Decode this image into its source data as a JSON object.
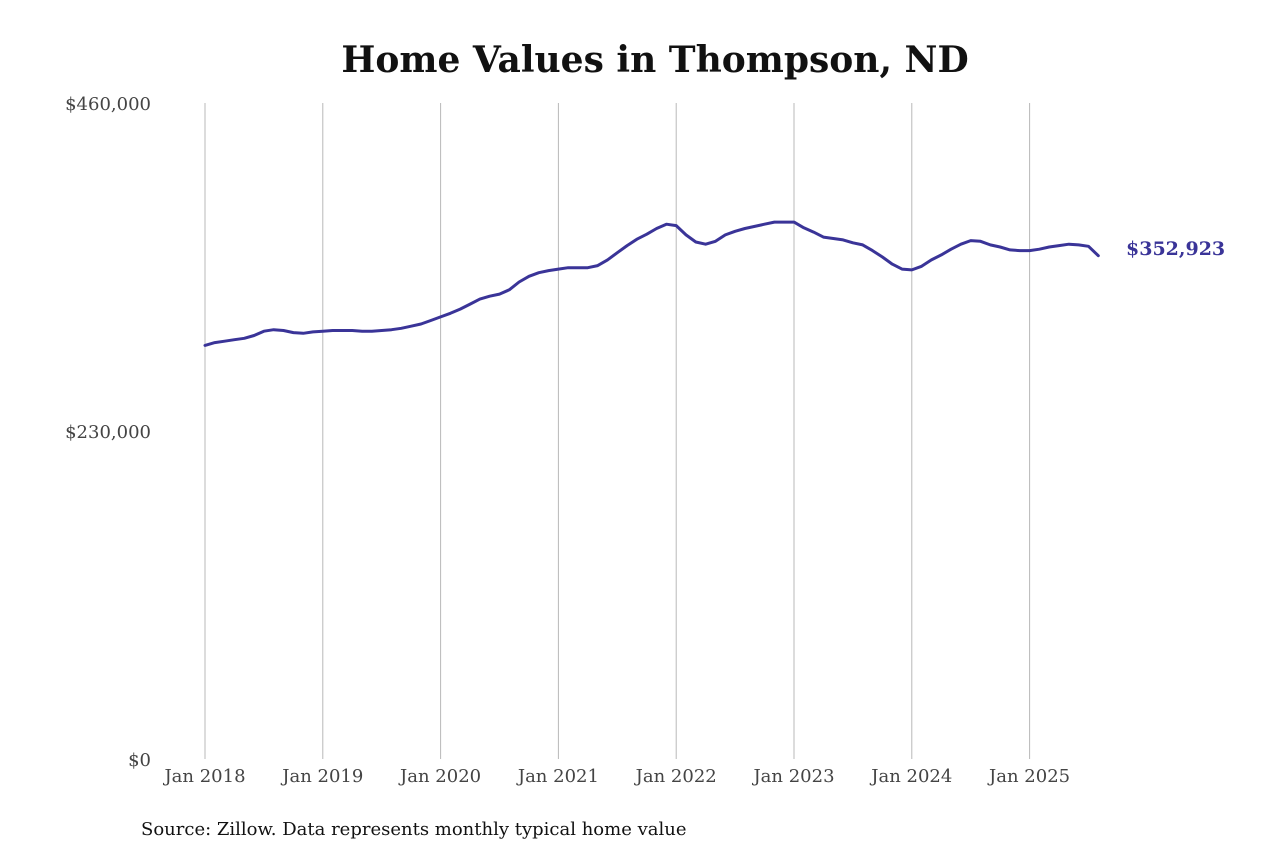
{
  "chart_data": {
    "type": "line",
    "title": "Home Values in Thompson, ND",
    "source": "Source: Zillow. Data represents monthly typical home value",
    "ylim": [
      0,
      460000
    ],
    "y_ticks": [
      0,
      230000,
      460000
    ],
    "y_tick_labels": [
      "$0",
      "$230,000",
      "$460,000"
    ],
    "x_ticks": [
      "2018-01",
      "2019-01",
      "2020-01",
      "2021-01",
      "2022-01",
      "2023-01",
      "2024-01",
      "2025-01"
    ],
    "x_tick_labels": [
      "Jan 2018",
      "Jan 2019",
      "Jan 2020",
      "Jan 2021",
      "Jan 2022",
      "Jan 2023",
      "Jan 2024",
      "Jan 2025"
    ],
    "grid": "vertical",
    "end_label": "$352,923",
    "series": [
      {
        "color": "#3a3498",
        "x": [
          "2018-01",
          "2018-02",
          "2018-03",
          "2018-04",
          "2018-05",
          "2018-06",
          "2018-07",
          "2018-08",
          "2018-09",
          "2018-10",
          "2018-11",
          "2018-12",
          "2019-01",
          "2019-02",
          "2019-03",
          "2019-04",
          "2019-05",
          "2019-06",
          "2019-07",
          "2019-08",
          "2019-09",
          "2019-10",
          "2019-11",
          "2019-12",
          "2020-01",
          "2020-02",
          "2020-03",
          "2020-04",
          "2020-05",
          "2020-06",
          "2020-07",
          "2020-08",
          "2020-09",
          "2020-10",
          "2020-11",
          "2020-12",
          "2021-01",
          "2021-02",
          "2021-03",
          "2021-04",
          "2021-05",
          "2021-06",
          "2021-07",
          "2021-08",
          "2021-09",
          "2021-10",
          "2021-11",
          "2021-12",
          "2022-01",
          "2022-02",
          "2022-03",
          "2022-04",
          "2022-05",
          "2022-06",
          "2022-07",
          "2022-08",
          "2022-09",
          "2022-10",
          "2022-11",
          "2022-12",
          "2023-01",
          "2023-02",
          "2023-03",
          "2023-04",
          "2023-05",
          "2023-06",
          "2023-07",
          "2023-08",
          "2023-09",
          "2023-10",
          "2023-11",
          "2023-12",
          "2024-01",
          "2024-02",
          "2024-03",
          "2024-04",
          "2024-05",
          "2024-06",
          "2024-07",
          "2024-08",
          "2024-09",
          "2024-10",
          "2024-11",
          "2024-12",
          "2025-01",
          "2025-02",
          "2025-03",
          "2025-04",
          "2025-05",
          "2025-06",
          "2025-07",
          "2025-08"
        ],
        "values": [
          290000,
          292000,
          293000,
          294000,
          295000,
          297000,
          300000,
          301000,
          300500,
          299000,
          298500,
          299500,
          300000,
          300500,
          300500,
          300500,
          300000,
          300000,
          300500,
          301000,
          302000,
          303500,
          305000,
          307500,
          310000,
          312500,
          315500,
          319000,
          322500,
          324500,
          326000,
          329000,
          334500,
          338500,
          341000,
          342500,
          343500,
          344500,
          344500,
          344500,
          346000,
          350000,
          355000,
          360000,
          364500,
          368000,
          372000,
          375000,
          374000,
          367500,
          362500,
          361000,
          363000,
          367500,
          370000,
          372000,
          373500,
          375000,
          376500,
          376500,
          376500,
          372500,
          369500,
          366000,
          365000,
          364000,
          362000,
          360500,
          356500,
          352000,
          347000,
          343500,
          343000,
          345500,
          350000,
          353500,
          357500,
          361000,
          363500,
          363000,
          360500,
          359000,
          357000,
          356500,
          356500,
          357500,
          359000,
          360000,
          361000,
          360500,
          359500,
          352923
        ]
      }
    ]
  }
}
